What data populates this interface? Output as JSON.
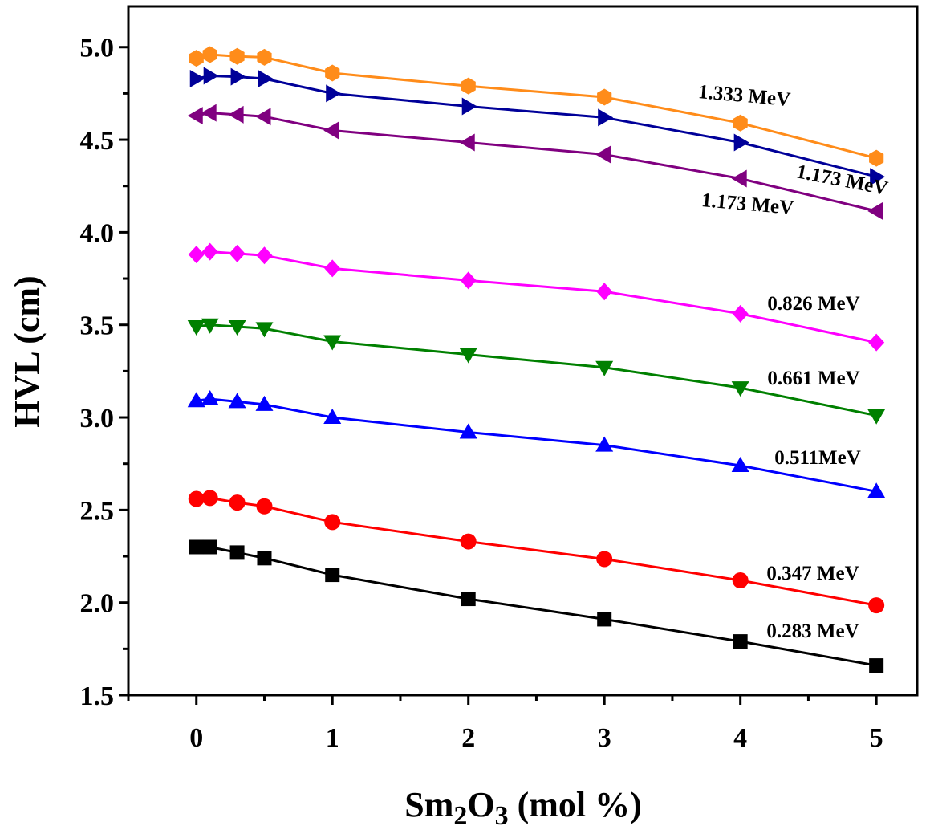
{
  "chart_data": {
    "type": "line",
    "x": [
      0,
      0.1,
      0.3,
      0.5,
      1,
      2,
      3,
      4,
      5
    ],
    "xlim": [
      -0.5,
      5.3
    ],
    "ylim": [
      1.5,
      5.22
    ],
    "xticks": [
      "0",
      "1",
      "2",
      "3",
      "4",
      "5"
    ],
    "yticks": [
      "1.5",
      "2.0",
      "2.5",
      "3.0",
      "3.5",
      "4.0",
      "4.5",
      "5.0"
    ],
    "xlabel": {
      "main": "Sm",
      "sub1": "2",
      "mid": "O",
      "sub2": "3",
      "tail": " (mol %)"
    },
    "ylabel": "HVL (cm)",
    "grid": false,
    "series": [
      {
        "label": "0.283 MeV",
        "color": "#000000",
        "marker": "square",
        "values": [
          2.3,
          2.3,
          2.27,
          2.24,
          2.15,
          2.02,
          1.91,
          1.79,
          1.66
        ]
      },
      {
        "label": "0.347 MeV",
        "color": "#ff0000",
        "marker": "circle",
        "values": [
          2.56,
          2.565,
          2.54,
          2.52,
          2.435,
          2.33,
          2.235,
          2.12,
          1.985
        ]
      },
      {
        "label": "0.511MeV",
        "color": "#0000ff",
        "marker": "triangle-up",
        "values": [
          3.09,
          3.1,
          3.085,
          3.07,
          3.0,
          2.92,
          2.85,
          2.74,
          2.6
        ]
      },
      {
        "label": "0.661 MeV",
        "color": "#008000",
        "marker": "triangle-down",
        "values": [
          3.49,
          3.5,
          3.49,
          3.48,
          3.41,
          3.34,
          3.27,
          3.16,
          3.01
        ]
      },
      {
        "label": "0.826 MeV",
        "color": "#ff00ff",
        "marker": "diamond",
        "values": [
          3.88,
          3.895,
          3.885,
          3.875,
          3.805,
          3.74,
          3.68,
          3.56,
          3.405
        ]
      },
      {
        "label": "1.173 MeV",
        "color": "#800080",
        "marker": "triangle-left",
        "values": [
          4.63,
          4.645,
          4.635,
          4.625,
          4.55,
          4.485,
          4.42,
          4.29,
          4.115
        ]
      },
      {
        "label": "1.173 MeV",
        "color": "#000099",
        "marker": "triangle-right",
        "values": [
          4.83,
          4.845,
          4.84,
          4.83,
          4.75,
          4.68,
          4.62,
          4.485,
          4.3
        ]
      },
      {
        "label": "1.333 MeV",
        "color": "#ff8c1a",
        "marker": "hexagon",
        "values": [
          4.94,
          4.96,
          4.95,
          4.945,
          4.86,
          4.79,
          4.73,
          4.59,
          4.4
        ]
      }
    ]
  }
}
